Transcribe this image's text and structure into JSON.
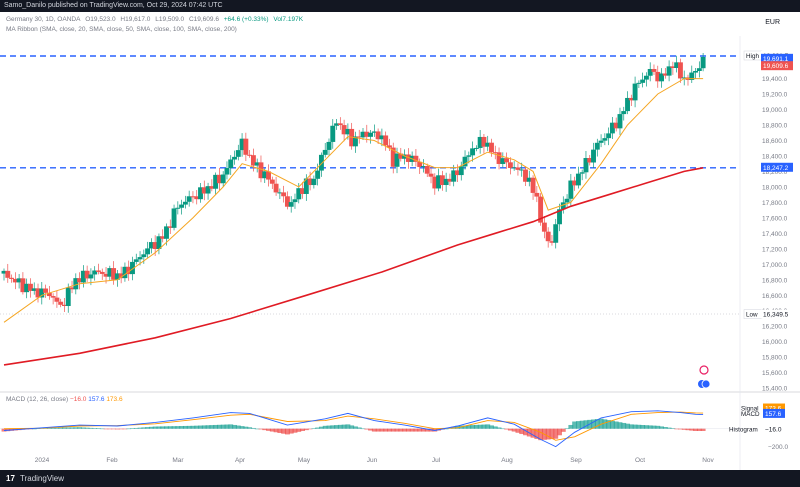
{
  "header": {
    "published": "Samo_Danilo published on TradingView.com, Oct 29, 2024 07:42 UTC"
  },
  "legend": {
    "symbol": "Germany 30, 1D, OANDA",
    "open": "O19,523.0",
    "high": "H19,617.0",
    "low": "L19,509.0",
    "close": "C19,609.6",
    "change": "+64.6 (+0.33%)",
    "volume": "Vol7.197K",
    "ma_ribbon": "MA Ribbon (SMA, close, 20, SMA, close, 50, SMA, close, 100, SMA, close, 200)",
    "currency": "EUR"
  },
  "macd": {
    "label": "MACD (12, 26, close)",
    "hist_value": "−16.0",
    "macd_value": "157.6",
    "signal_value": "173.6"
  },
  "footer": {
    "logo": "17",
    "brand": "TradingView"
  },
  "colors": {
    "up": "#089981",
    "down": "#ef5350",
    "ma20": "#f5a623",
    "ma200": "#e01b24",
    "hline": "#2962ff",
    "macd": "#2962ff",
    "signal": "#ff9800",
    "hist_up": "#26a69a",
    "hist_down": "#ef5350"
  },
  "chart_data": {
    "type": "candlestick",
    "symbol": "Germany 30",
    "timeframe": "1D",
    "y_range": [
      15350,
      19950
    ],
    "x_ticks": [
      "2024",
      "Feb",
      "Mar",
      "Apr",
      "May",
      "Jun",
      "Jul",
      "Aug",
      "Sep",
      "Oct",
      "Nov"
    ],
    "y_ticks": [
      15400,
      15600,
      15800,
      16000,
      16200,
      16400,
      16600,
      16800,
      17000,
      17200,
      17400,
      17600,
      17800,
      18000,
      18200,
      18400,
      18600,
      18800,
      19000,
      19200,
      19400
    ],
    "horizontal_lines": [
      19691.7,
      18247.2
    ],
    "price_labels": [
      {
        "label": "High",
        "value": "19,691.7",
        "price": 19691.7,
        "style": "plain"
      },
      {
        "label": "",
        "value": "19,691.1",
        "price": 19655,
        "style": "blue"
      },
      {
        "label": "",
        "value": "19,609.6",
        "price": 19560,
        "style": "red"
      },
      {
        "label": "",
        "value": "18,247.2",
        "price": 18247.2,
        "style": "blue"
      },
      {
        "label": "Low",
        "value": "16,349.5",
        "price": 16349.5,
        "style": "plain"
      }
    ],
    "close_path": [
      [
        0,
        16880
      ],
      [
        8,
        16750
      ],
      [
        16,
        16650
      ],
      [
        24,
        16620
      ],
      [
        30,
        16450
      ],
      [
        38,
        16800
      ],
      [
        48,
        16900
      ],
      [
        62,
        16850
      ],
      [
        70,
        17050
      ],
      [
        76,
        17200
      ],
      [
        84,
        17350
      ],
      [
        92,
        17750
      ],
      [
        98,
        17850
      ],
      [
        106,
        17950
      ],
      [
        116,
        18150
      ],
      [
        122,
        18420
      ],
      [
        126,
        18560
      ],
      [
        132,
        18300
      ],
      [
        140,
        18100
      ],
      [
        146,
        17900
      ],
      [
        152,
        17760
      ],
      [
        156,
        17950
      ],
      [
        164,
        18100
      ],
      [
        170,
        18500
      ],
      [
        176,
        18850
      ],
      [
        184,
        18600
      ],
      [
        192,
        18700
      ],
      [
        200,
        18650
      ],
      [
        206,
        18350
      ],
      [
        212,
        18400
      ],
      [
        220,
        18300
      ],
      [
        228,
        18050
      ],
      [
        236,
        18100
      ],
      [
        240,
        18200
      ],
      [
        248,
        18500
      ],
      [
        254,
        18600
      ],
      [
        260,
        18400
      ],
      [
        266,
        18300
      ],
      [
        270,
        18250
      ],
      [
        276,
        18150
      ],
      [
        282,
        17850
      ],
      [
        286,
        17350
      ],
      [
        290,
        17300
      ],
      [
        294,
        17700
      ],
      [
        300,
        18000
      ],
      [
        308,
        18300
      ],
      [
        314,
        18550
      ],
      [
        320,
        18700
      ],
      [
        326,
        18900
      ],
      [
        332,
        19200
      ],
      [
        336,
        19350
      ],
      [
        342,
        19500
      ],
      [
        348,
        19400
      ],
      [
        354,
        19600
      ],
      [
        358,
        19450
      ],
      [
        362,
        19380
      ],
      [
        366,
        19520
      ],
      [
        370,
        19609.6
      ]
    ],
    "ma20_path": [
      [
        0,
        16250
      ],
      [
        20,
        16600
      ],
      [
        40,
        16750
      ],
      [
        60,
        16800
      ],
      [
        80,
        17150
      ],
      [
        100,
        17600
      ],
      [
        116,
        18000
      ],
      [
        126,
        18300
      ],
      [
        140,
        18200
      ],
      [
        156,
        18000
      ],
      [
        168,
        18300
      ],
      [
        182,
        18650
      ],
      [
        196,
        18600
      ],
      [
        212,
        18400
      ],
      [
        228,
        18250
      ],
      [
        240,
        18250
      ],
      [
        256,
        18450
      ],
      [
        270,
        18350
      ],
      [
        280,
        18200
      ],
      [
        288,
        17700
      ],
      [
        300,
        17800
      ],
      [
        316,
        18300
      ],
      [
        330,
        18800
      ],
      [
        346,
        19200
      ],
      [
        360,
        19400
      ],
      [
        370,
        19400
      ]
    ],
    "ma200_path": [
      [
        0,
        15700
      ],
      [
        40,
        15850
      ],
      [
        80,
        16050
      ],
      [
        120,
        16300
      ],
      [
        160,
        16600
      ],
      [
        200,
        16900
      ],
      [
        240,
        17250
      ],
      [
        260,
        17400
      ],
      [
        280,
        17550
      ],
      [
        300,
        17750
      ],
      [
        320,
        17900
      ],
      [
        340,
        18050
      ],
      [
        360,
        18200
      ],
      [
        370,
        18247.2
      ]
    ],
    "macd": {
      "y_range": [
        -260,
        320
      ],
      "ticks": [
        200,
        0,
        -200
      ],
      "macd_path": [
        [
          0,
          -20
        ],
        [
          20,
          10
        ],
        [
          40,
          40
        ],
        [
          60,
          30
        ],
        [
          80,
          70
        ],
        [
          100,
          120
        ],
        [
          120,
          180
        ],
        [
          130,
          170
        ],
        [
          150,
          40
        ],
        [
          170,
          110
        ],
        [
          182,
          170
        ],
        [
          196,
          90
        ],
        [
          212,
          40
        ],
        [
          228,
          -20
        ],
        [
          240,
          30
        ],
        [
          256,
          120
        ],
        [
          270,
          50
        ],
        [
          284,
          -120
        ],
        [
          292,
          -200
        ],
        [
          302,
          -40
        ],
        [
          316,
          120
        ],
        [
          332,
          190
        ],
        [
          346,
          200
        ],
        [
          358,
          180
        ],
        [
          366,
          160
        ],
        [
          370,
          157.6
        ]
      ],
      "signal_path": [
        [
          0,
          0
        ],
        [
          20,
          5
        ],
        [
          40,
          30
        ],
        [
          60,
          35
        ],
        [
          80,
          55
        ],
        [
          100,
          100
        ],
        [
          120,
          150
        ],
        [
          130,
          160
        ],
        [
          150,
          80
        ],
        [
          170,
          90
        ],
        [
          182,
          140
        ],
        [
          196,
          110
        ],
        [
          212,
          60
        ],
        [
          228,
          0
        ],
        [
          240,
          10
        ],
        [
          256,
          90
        ],
        [
          270,
          70
        ],
        [
          284,
          -40
        ],
        [
          292,
          -130
        ],
        [
          302,
          -90
        ],
        [
          316,
          50
        ],
        [
          332,
          160
        ],
        [
          346,
          180
        ],
        [
          358,
          185
        ],
        [
          366,
          176
        ],
        [
          370,
          173.6
        ]
      ]
    }
  }
}
